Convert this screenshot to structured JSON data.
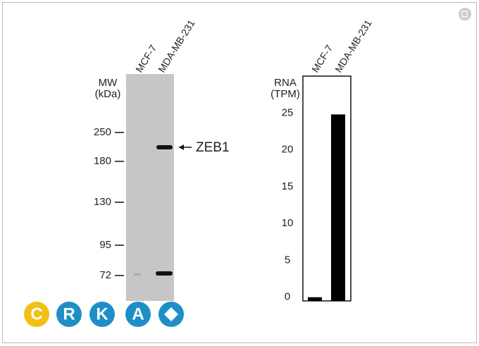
{
  "blot": {
    "lanes": [
      "MCF-7",
      "MDA-MB-231"
    ],
    "mw_title": "MW",
    "mw_unit": "(kDa)",
    "mw_markers": [
      250,
      180,
      130,
      95,
      72
    ],
    "band_label": "ZEB1"
  },
  "chart_data": {
    "type": "bar",
    "y_label": "RNA",
    "y_unit": "(TPM)",
    "categories": [
      "MCF-7",
      "MDA-MB-231"
    ],
    "values": [
      0,
      24.8
    ],
    "color": "#000000",
    "ylim": [
      -0.5,
      30
    ],
    "yticks": [
      0,
      5,
      10,
      15,
      20,
      25
    ]
  },
  "logo": {
    "letters": [
      "C",
      "R",
      "K",
      "A"
    ]
  }
}
